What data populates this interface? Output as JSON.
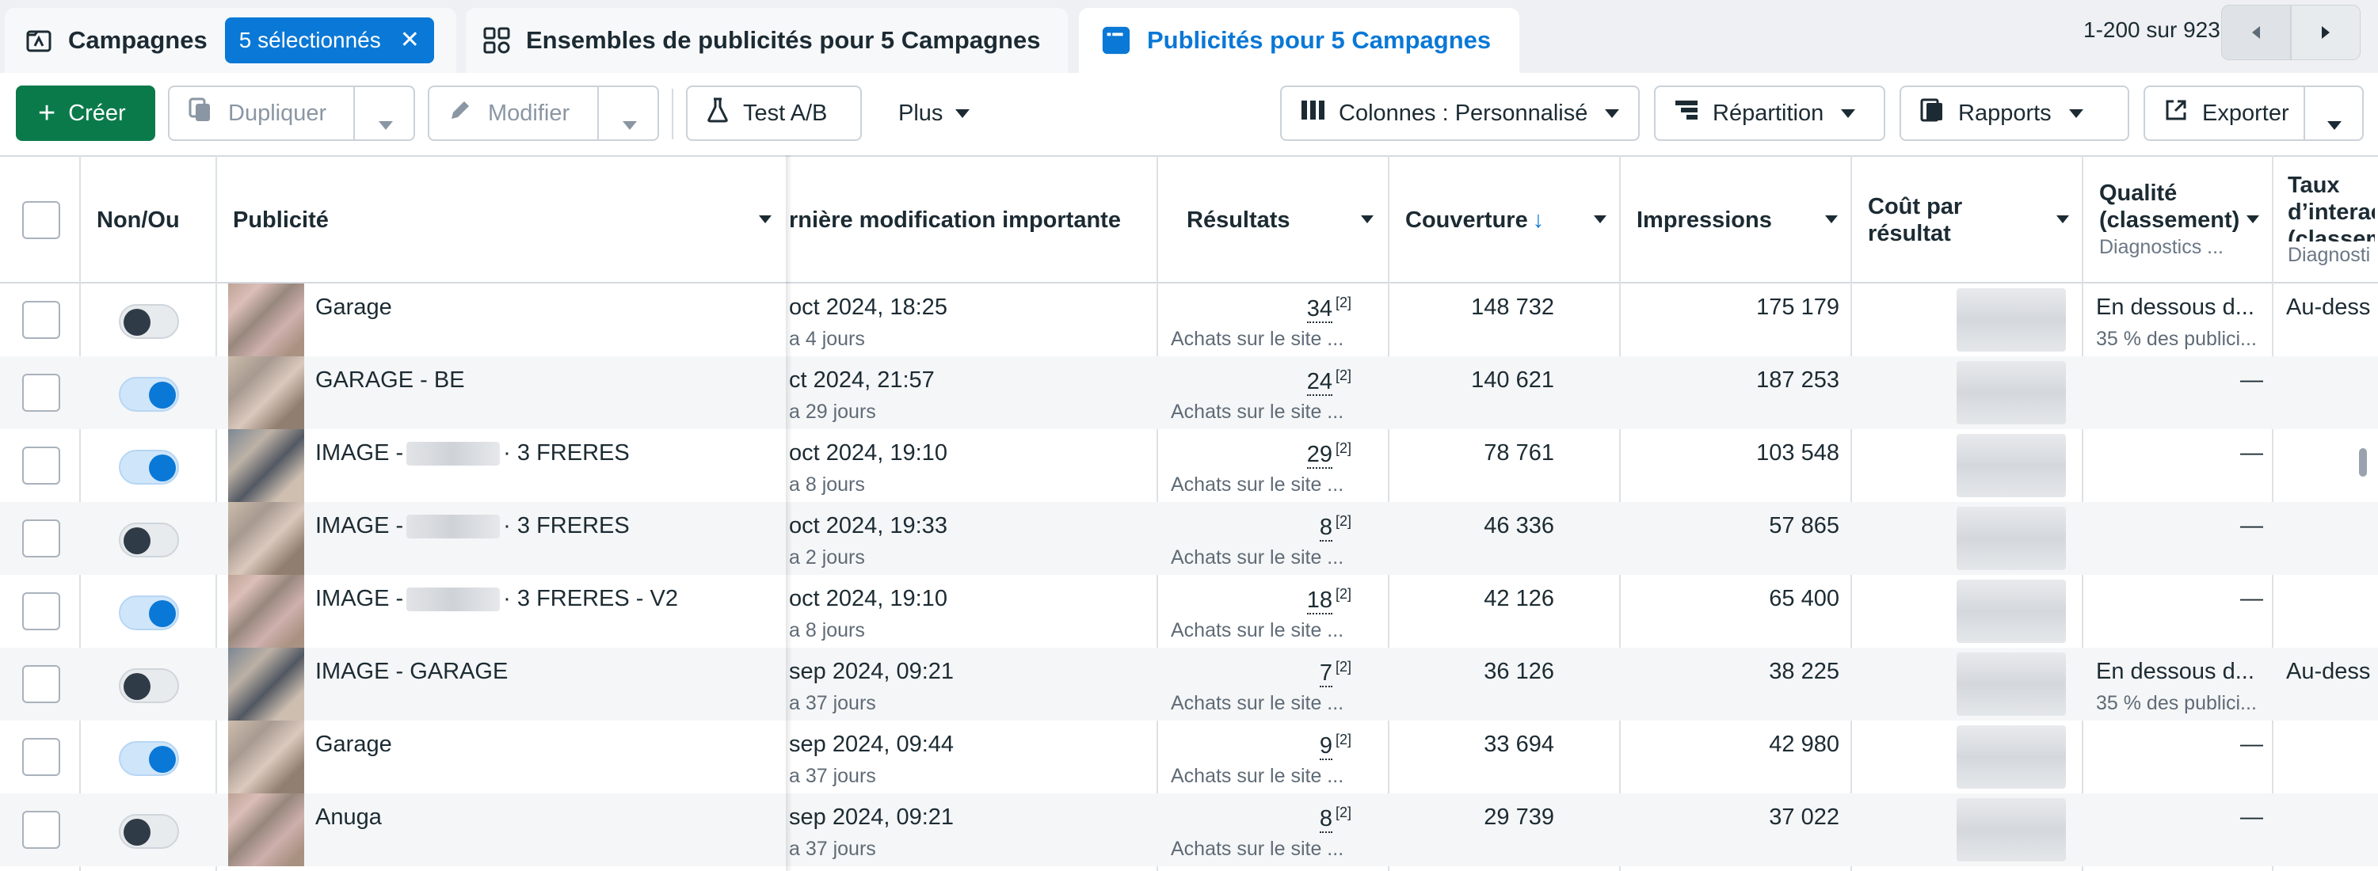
{
  "tabs": [
    {
      "label": "Campagnes",
      "icon": "folder-flag-icon",
      "badge": "5 sélectionnés"
    },
    {
      "label": "Ensembles de publicités pour 5 Campagnes",
      "icon": "grid-icon"
    },
    {
      "label": "Publicités pour 5 Campagnes",
      "icon": "ad-window-icon"
    }
  ],
  "pager": {
    "text": "1-200 sur 923"
  },
  "toolbar": {
    "create": "Créer",
    "duplicate": "Dupliquer",
    "modify": "Modifier",
    "ab_test": "Test A/B",
    "more": "Plus",
    "columns": "Colonnes : Personnalisé",
    "breakdown": "Répartition",
    "reports": "Rapports",
    "export": "Exporter"
  },
  "columns": {
    "onoff": "Non/Ou",
    "ad": "Publicité",
    "last_mod": "rnière modification importante",
    "results": "Résultats",
    "reach": "Couverture",
    "impressions": "Impressions",
    "cost_line1": "Coût par",
    "cost_line2": "résultat",
    "quality_line1": "Qualité",
    "quality_line2": "(classement)",
    "quality_sub": "Diagnostics ...",
    "rate_line1": "Taux",
    "rate_line2": "d’interac",
    "rate_line3": "(classem",
    "rate_sub": "Diagnosti"
  },
  "rows": [
    {
      "toggle": "off",
      "name_a": "Garage",
      "name_b": "",
      "blur": false,
      "mod": "oct 2024, 18:25",
      "mod_sub": "a 4 jours",
      "results": "34",
      "res_ref": "[2]",
      "res_sub": "Achats sur le site ...",
      "reach": "148 732",
      "impressions": "175 179",
      "quality": "En dessous d...",
      "quality_sub": "35 % des publici...",
      "rate": "Au-dess"
    },
    {
      "toggle": "on",
      "name_a": "GARAGE - BE",
      "name_b": "",
      "blur": false,
      "mod": "ct 2024, 21:57",
      "mod_sub": "a 29 jours",
      "results": "24",
      "res_ref": "[2]",
      "res_sub": "Achats sur le site ...",
      "reach": "140 621",
      "impressions": "187 253",
      "quality": "",
      "quality_sub": "",
      "dash": "—",
      "rate": ""
    },
    {
      "toggle": "on",
      "name_a": "IMAGE -",
      "name_b": "· 3 FRERES",
      "blur": true,
      "mod": "oct 2024, 19:10",
      "mod_sub": "a 8 jours",
      "results": "29",
      "res_ref": "[2]",
      "res_sub": "Achats sur le site ...",
      "reach": "78 761",
      "impressions": "103 548",
      "quality": "",
      "quality_sub": "",
      "dash": "—",
      "rate": ""
    },
    {
      "toggle": "off",
      "name_a": "IMAGE -",
      "name_b": "· 3 FRERES",
      "blur": true,
      "mod": "oct 2024, 19:33",
      "mod_sub": "a 2 jours",
      "results": "8",
      "res_ref": "[2]",
      "res_sub": "Achats sur le site ...",
      "reach": "46 336",
      "impressions": "57 865",
      "quality": "",
      "quality_sub": "",
      "dash": "—",
      "rate": ""
    },
    {
      "toggle": "on",
      "name_a": "IMAGE -",
      "name_b": "· 3 FRERES - V2",
      "blur": true,
      "mod": "oct 2024, 19:10",
      "mod_sub": "a 8 jours",
      "results": "18",
      "res_ref": "[2]",
      "res_sub": "Achats sur le site ...",
      "reach": "42 126",
      "impressions": "65 400",
      "quality": "",
      "quality_sub": "",
      "dash": "—",
      "rate": ""
    },
    {
      "toggle": "off",
      "name_a": "IMAGE - GARAGE",
      "name_b": "",
      "blur": false,
      "mod": "sep 2024, 09:21",
      "mod_sub": "a 37 jours",
      "results": "7",
      "res_ref": "[2]",
      "res_sub": "Achats sur le site ...",
      "reach": "36 126",
      "impressions": "38 225",
      "quality": "En dessous d...",
      "quality_sub": "35 % des publici...",
      "rate": "Au-dess"
    },
    {
      "toggle": "on",
      "name_a": "Garage",
      "name_b": "",
      "blur": false,
      "mod": "sep 2024, 09:44",
      "mod_sub": "a 37 jours",
      "results": "9",
      "res_ref": "[2]",
      "res_sub": "Achats sur le site ...",
      "reach": "33 694",
      "impressions": "42 980",
      "quality": "",
      "quality_sub": "",
      "dash": "—",
      "rate": ""
    },
    {
      "toggle": "off",
      "name_a": "Anuga",
      "name_b": "",
      "blur": false,
      "mod": "sep 2024, 09:21",
      "mod_sub": "a 37 jours",
      "results": "8",
      "res_ref": "[2]",
      "res_sub": "Achats sur le site ...",
      "reach": "29 739",
      "impressions": "37 022",
      "quality": "",
      "quality_sub": "",
      "dash": "—",
      "rate": ""
    }
  ]
}
